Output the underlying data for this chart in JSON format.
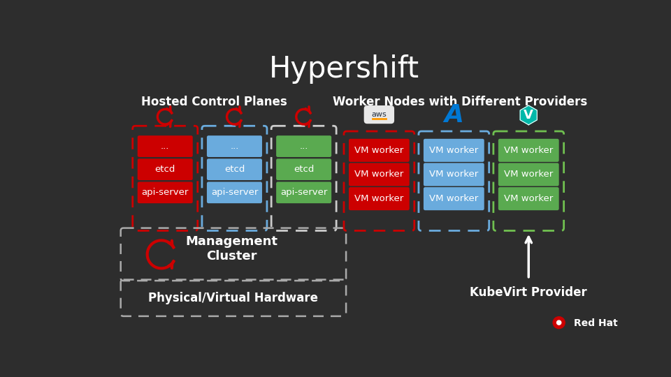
{
  "title": "Hypershift",
  "bg_color": "#2d2d2d",
  "text_color": "#ffffff",
  "title_fontsize": 30,
  "hosted_control_planes_label": "Hosted Control Planes",
  "worker_nodes_label": "Worker Nodes with Different Providers",
  "management_cluster_label": "Management\nCluster",
  "physical_hardware_label": "Physical/Virtual Hardware",
  "kubevirt_provider_label": "KubeVirt Provider",
  "red_hat_label": "Red Hat",
  "red_color": "#cc0000",
  "blue_color": "#6aabdd",
  "green_color": "#5aaa50",
  "box_labels": [
    "...",
    "etcd",
    "api-server"
  ],
  "vm_worker_label": "VM worker",
  "aws_color": "#ff9900",
  "azure_color": "#0078d4",
  "kubevirt_color": "#00b8a9",
  "green_dash_color": "#70c050"
}
